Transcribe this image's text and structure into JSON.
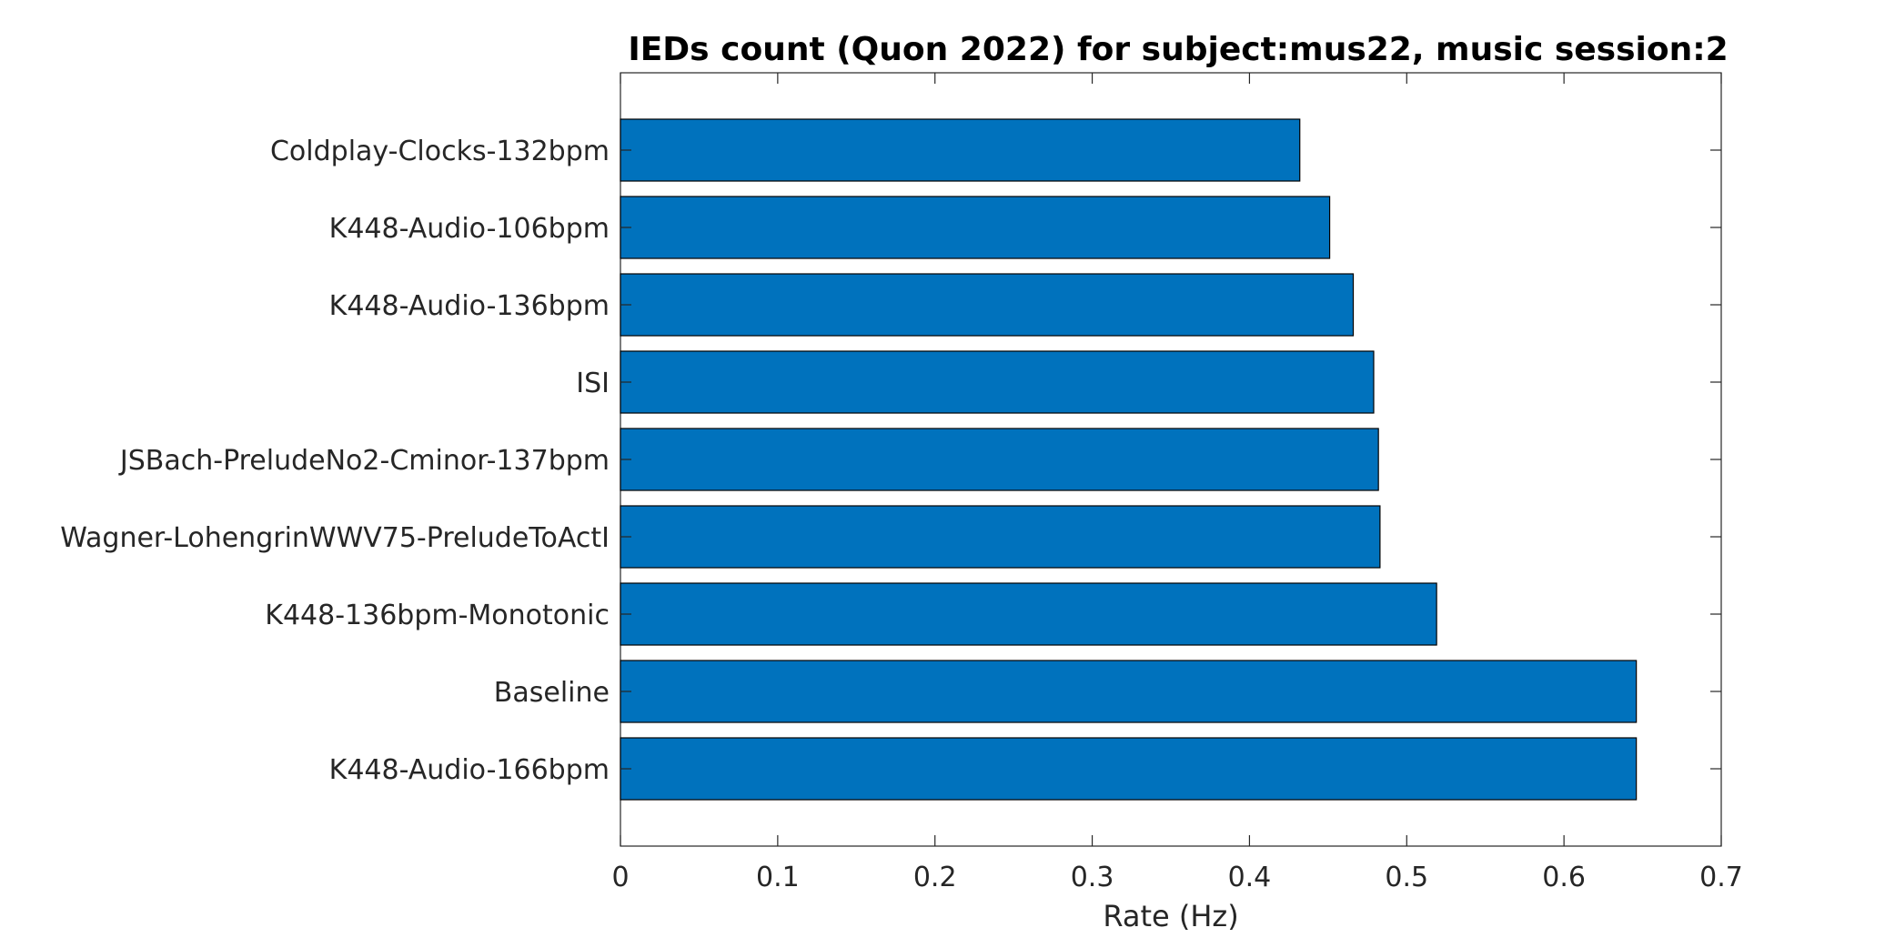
{
  "chart_data": {
    "type": "bar",
    "orientation": "horizontal",
    "title": "IEDs count (Quon 2022) for subject:mus22, music session:2",
    "xlabel": "Rate (Hz)",
    "ylabel": "",
    "xlim": [
      0,
      0.7
    ],
    "xticks": [
      "0",
      "0.1",
      "0.2",
      "0.3",
      "0.4",
      "0.5",
      "0.6",
      "0.7"
    ],
    "categories": [
      "Coldplay-Clocks-132bpm",
      "K448-Audio-106bpm",
      "K448-Audio-136bpm",
      "ISI",
      "JSBach-PreludeNo2-Cminor-137bpm",
      "Wagner-LohengrinWWV75-PreludeToActI",
      "K448-136bpm-Monotonic",
      "Baseline",
      "K448-Audio-166bpm"
    ],
    "values": [
      0.432,
      0.451,
      0.466,
      0.479,
      0.482,
      0.483,
      0.519,
      0.646,
      0.646
    ],
    "bar_color": "#0072BD",
    "grid": false,
    "legend": "none"
  }
}
